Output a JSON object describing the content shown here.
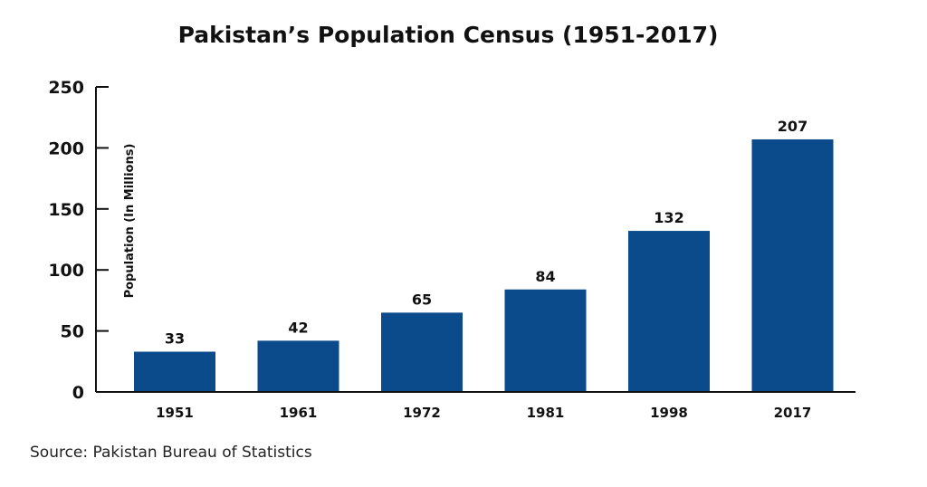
{
  "chart_data": {
    "type": "bar",
    "title": "Pakistan’s Population Census (1951-2017)",
    "ylabel": "Population (In Millions)",
    "xlabel": "",
    "categories": [
      "1951",
      "1961",
      "1972",
      "1981",
      "1998",
      "2017"
    ],
    "values": [
      33,
      42,
      65,
      84,
      132,
      207
    ],
    "data_labels": [
      "33",
      "42",
      "65",
      "84",
      "132",
      "207"
    ],
    "ylim": [
      0,
      250
    ],
    "yticks": [
      0,
      50,
      100,
      150,
      200,
      250
    ],
    "ytick_labels": [
      "0",
      "50",
      "100",
      "150",
      "200",
      "250"
    ],
    "grid": false,
    "bar_color": "#0b4a8b"
  },
  "source": "Source: Pakistan Bureau of Statistics"
}
